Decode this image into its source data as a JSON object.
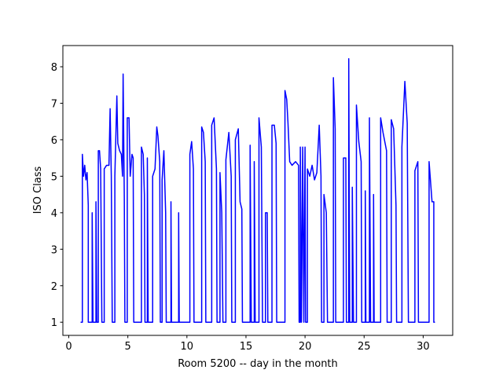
{
  "chart_data": {
    "type": "line",
    "x_label": "Room 5200 -- day in the month",
    "y_label": "ISO Class",
    "xlim": [
      -0.5,
      32.5
    ],
    "ylim": [
      0.639,
      8.581
    ],
    "xticks": [
      0,
      5,
      10,
      15,
      20,
      25,
      30
    ],
    "yticks": [
      1,
      2,
      3,
      4,
      5,
      6,
      7,
      8
    ],
    "series": [
      {
        "color": "blue",
        "x": [
          1.0,
          1.15,
          1.15,
          1.25,
          1.35,
          1.45,
          1.55,
          1.65,
          1.65,
          1.98,
          1.98,
          2.05,
          2.3,
          2.3,
          2.37,
          2.5,
          2.5,
          2.6,
          2.7,
          2.8,
          3.0,
          3.0,
          3.2,
          3.4,
          3.5,
          3.6,
          3.68,
          3.9,
          3.9,
          4.07,
          4.15,
          4.3,
          4.45,
          4.55,
          4.6,
          4.7,
          4.75,
          4.95,
          4.95,
          5.1,
          5.2,
          5.35,
          5.45,
          5.5,
          6.15,
          6.15,
          6.3,
          6.4,
          6.45,
          6.65,
          6.65,
          6.72,
          7.1,
          7.1,
          7.3,
          7.45,
          7.55,
          7.7,
          7.75,
          7.9,
          7.9,
          8.05,
          8.2,
          8.25,
          8.65,
          8.65,
          8.7,
          9.3,
          9.3,
          9.35,
          10.25,
          10.25,
          10.4,
          10.55,
          10.6,
          11.25,
          11.25,
          11.4,
          11.55,
          11.6,
          12.1,
          12.1,
          12.3,
          12.5,
          12.55,
          12.8,
          12.8,
          12.95,
          13.05,
          13.3,
          13.3,
          13.55,
          13.75,
          13.8,
          14.1,
          14.1,
          14.35,
          14.5,
          14.65,
          14.7,
          15.35,
          15.35,
          15.45,
          15.7,
          15.7,
          15.78,
          16.1,
          16.1,
          16.3,
          16.4,
          16.65,
          16.65,
          16.8,
          16.85,
          17.2,
          17.2,
          17.4,
          17.55,
          17.6,
          18.3,
          18.3,
          18.45,
          18.55,
          18.7,
          18.9,
          19.2,
          19.45,
          19.5,
          19.6,
          19.6,
          19.7,
          19.8,
          19.9,
          20.0,
          20.05,
          20.2,
          20.2,
          20.4,
          20.6,
          20.8,
          21.0,
          21.2,
          21.35,
          21.4,
          21.6,
          21.6,
          21.8,
          21.9,
          22.4,
          22.4,
          22.55,
          22.6,
          23.25,
          23.25,
          23.45,
          23.5,
          23.7,
          23.7,
          23.78,
          24.0,
          24.0,
          24.1,
          24.35,
          24.35,
          24.55,
          24.75,
          24.8,
          25.1,
          25.1,
          25.15,
          25.45,
          25.45,
          25.55,
          25.8,
          25.8,
          25.85,
          26.4,
          26.4,
          26.6,
          26.9,
          26.95,
          27.3,
          27.3,
          27.5,
          27.7,
          27.75,
          28.2,
          28.2,
          28.45,
          28.65,
          28.75,
          29.3,
          29.3,
          29.55,
          29.6,
          30.5,
          30.5,
          30.75,
          30.9,
          30.9,
          31.0
        ],
        "values": [
          1,
          1,
          5.6,
          5.0,
          5.3,
          4.9,
          5.1,
          4.2,
          1,
          1,
          4.0,
          1,
          1,
          4.3,
          1,
          1,
          5.7,
          5.7,
          5.2,
          1,
          1,
          5.2,
          5.3,
          5.3,
          6.85,
          5.0,
          1,
          1,
          5.0,
          7.2,
          5.9,
          5.7,
          5.6,
          5.0,
          7.8,
          4.4,
          1,
          1,
          6.6,
          6.6,
          5.0,
          5.6,
          5.5,
          1,
          1,
          5.8,
          5.6,
          4.5,
          1,
          1,
          5.5,
          1,
          1,
          5.0,
          5.2,
          6.35,
          6.1,
          5.4,
          1,
          1,
          4.9,
          5.7,
          4.0,
          1,
          1,
          4.3,
          1,
          1,
          4.0,
          1,
          1,
          5.6,
          5.95,
          5.2,
          1,
          1,
          6.35,
          6.2,
          5.4,
          1,
          1,
          6.4,
          6.6,
          5.2,
          1,
          1,
          5.1,
          4.0,
          1,
          1,
          5.45,
          6.2,
          5.0,
          1,
          1,
          6.0,
          6.3,
          4.3,
          4.1,
          1,
          1,
          5.85,
          1,
          1,
          5.4,
          1,
          1,
          6.6,
          5.8,
          1,
          1,
          4.0,
          4.0,
          1,
          1,
          6.4,
          6.4,
          5.9,
          1,
          1,
          7.35,
          7.1,
          6.5,
          5.4,
          5.3,
          5.4,
          5.3,
          1,
          1,
          5.8,
          1,
          5.8,
          1,
          5.8,
          1,
          1,
          5.2,
          5.0,
          5.3,
          4.9,
          5.1,
          6.4,
          5.0,
          1,
          1,
          4.5,
          4.0,
          1,
          1,
          7.7,
          6.3,
          1,
          1,
          5.5,
          5.5,
          1,
          1,
          8.22,
          1,
          1,
          4.7,
          1,
          1,
          6.95,
          5.95,
          5.4,
          1,
          1,
          4.6,
          1,
          1,
          6.6,
          1,
          1,
          4.5,
          1,
          1,
          6.6,
          6.2,
          5.7,
          1,
          1,
          6.55,
          6.3,
          4.2,
          1,
          1,
          5.8,
          7.6,
          6.45,
          1,
          1,
          5.15,
          5.4,
          1,
          1,
          5.4,
          4.3,
          4.3,
          1,
          1
        ]
      }
    ]
  }
}
